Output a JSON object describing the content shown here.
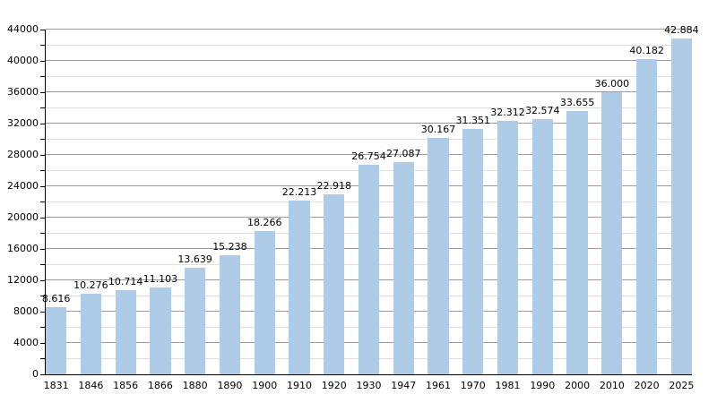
{
  "chart_data": {
    "type": "bar",
    "title": "",
    "xlabel": "",
    "ylabel": "",
    "categories": [
      "1831",
      "1846",
      "1856",
      "1866",
      "1880",
      "1890",
      "1900",
      "1910",
      "1920",
      "1930",
      "1947",
      "1961",
      "1970",
      "1981",
      "1990",
      "2000",
      "2010",
      "2020",
      "2025"
    ],
    "values": [
      8616,
      10276,
      10714,
      11103,
      13639,
      15238,
      18266,
      22213,
      22918,
      26754,
      27087,
      30167,
      31351,
      32312,
      32574,
      33655,
      36000,
      40182,
      42884
    ],
    "value_labels": [
      "8.616",
      "10.276",
      "10.714",
      "11.103",
      "13.639",
      "15.238",
      "18.266",
      "22.213",
      "22.918",
      "26.754",
      "27.087",
      "30.167",
      "31.351",
      "32.312",
      "32.574",
      "33.655",
      "36.000",
      "40.182",
      "42.884"
    ],
    "ylim": [
      0,
      44000
    ],
    "y_major_step": 4000,
    "y_minor_step": 2000,
    "y_tick_labels": [
      "0",
      "4000",
      "8000",
      "12000",
      "16000",
      "20000",
      "24000",
      "28000",
      "32000",
      "36000",
      "40000",
      "44000"
    ],
    "grid": true,
    "legend": false,
    "colors": {
      "bar_fill": "#aecbe7",
      "major_grid": "#9a9a9a",
      "minor_grid": "#dfdfdf",
      "axis": "#000000",
      "text": "#000000",
      "background": "#ffffff"
    },
    "bar_width_fraction": 0.6
  }
}
